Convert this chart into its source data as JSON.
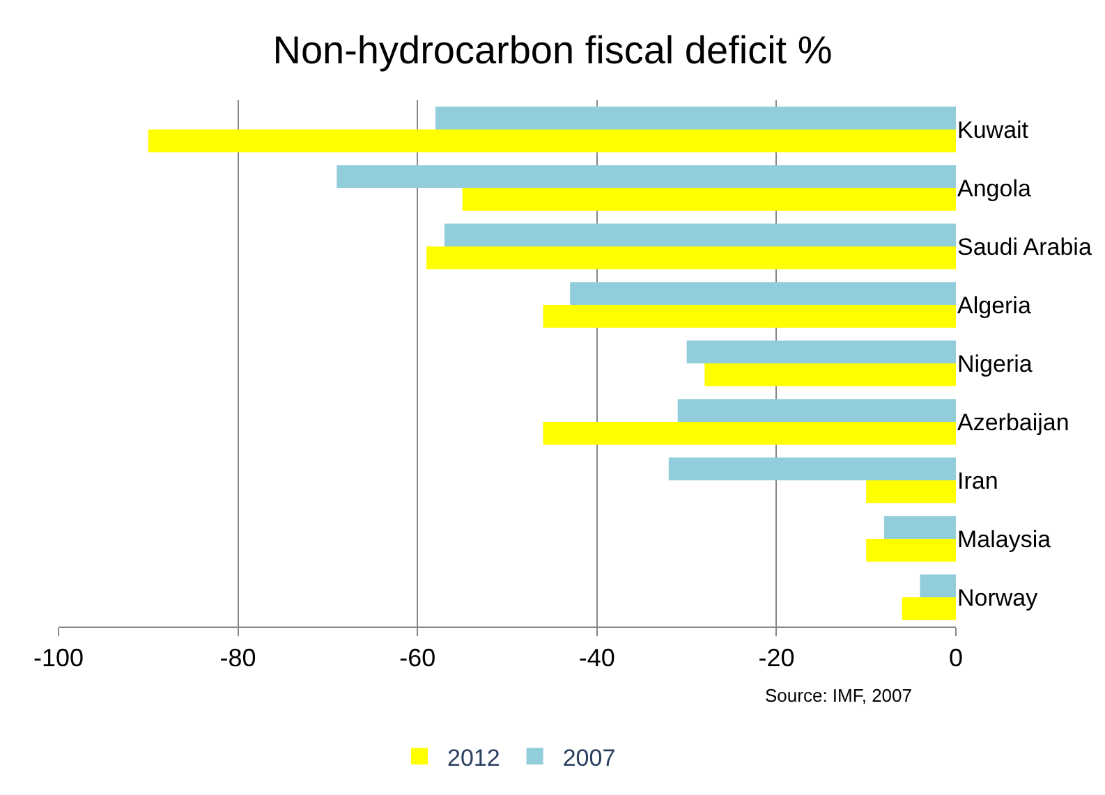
{
  "chart_data": {
    "type": "bar",
    "orientation": "horizontal",
    "title": "Non-hydrocarbon fiscal deficit %",
    "categories": [
      "Kuwait",
      "Angola",
      "Saudi Arabia",
      "Algeria",
      "Nigeria",
      "Azerbaijan",
      "Iran",
      "Malaysia",
      "Norway"
    ],
    "series": [
      {
        "name": "2012",
        "color": "#ffff00",
        "values": [
          -90,
          -55,
          -59,
          -46,
          -28,
          -46,
          -10,
          -10,
          -6
        ]
      },
      {
        "name": "2007",
        "color": "#92cddc",
        "values": [
          -58,
          -69,
          -57,
          -43,
          -30,
          -31,
          -32,
          -8,
          -4
        ]
      }
    ],
    "xlim": [
      -100,
      0
    ],
    "xticks": [
      -100,
      -80,
      -60,
      -40,
      -20,
      0
    ],
    "grid": "x",
    "legend": "bottom",
    "annotations": [
      "Source: IMF, 2007"
    ]
  }
}
